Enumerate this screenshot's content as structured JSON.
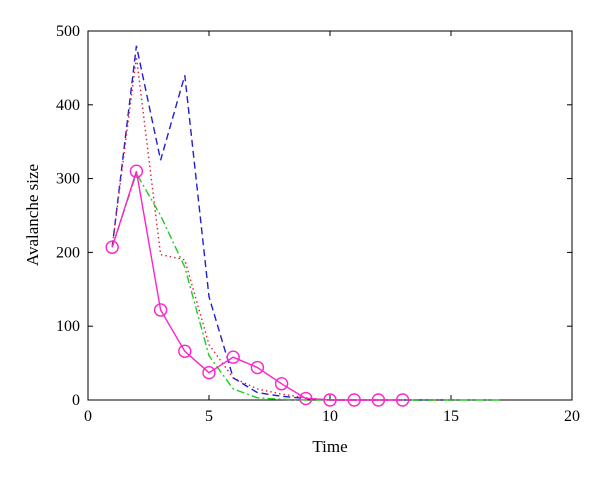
{
  "chart_data": {
    "type": "line",
    "xlabel": "Time",
    "ylabel": "Avalanche size",
    "xlim": [
      0,
      20
    ],
    "ylim": [
      0,
      500
    ],
    "xticks": [
      0,
      5,
      10,
      15,
      20
    ],
    "yticks": [
      0,
      100,
      200,
      300,
      400,
      500
    ],
    "grid": false,
    "legend": "none",
    "series": [
      {
        "color": "#1f1fd6",
        "dash": "dashed",
        "marker": "none",
        "x": [
          1,
          2,
          3,
          4,
          5,
          6,
          7,
          8,
          9,
          10,
          11,
          12,
          13,
          14,
          15
        ],
        "y": [
          207,
          480,
          325,
          440,
          140,
          30,
          10,
          5,
          2,
          0,
          0,
          0,
          0,
          0,
          0
        ]
      },
      {
        "color": "#e0203a",
        "dash": "dotted",
        "marker": "none",
        "x": [
          1,
          2,
          3,
          4,
          5,
          6,
          7,
          8,
          9,
          10,
          11,
          12,
          13,
          14,
          15
        ],
        "y": [
          207,
          465,
          197,
          190,
          75,
          30,
          15,
          8,
          3,
          0,
          0,
          0,
          0,
          0,
          0
        ]
      },
      {
        "color": "#22cc22",
        "dash": "dashdot",
        "marker": "none",
        "x": [
          1,
          2,
          3,
          4,
          5,
          6,
          7,
          8,
          9,
          10,
          11,
          12,
          13,
          14,
          15,
          16,
          17
        ],
        "y": [
          207,
          307,
          250,
          180,
          60,
          15,
          3,
          1,
          0,
          0,
          0,
          0,
          0,
          0,
          0,
          0,
          0
        ]
      },
      {
        "color": "#ff22cc",
        "dash": "solid",
        "marker": "circle",
        "x": [
          1,
          2,
          3,
          4,
          5,
          6,
          7,
          8,
          9,
          10,
          11,
          12,
          13
        ],
        "y": [
          207,
          310,
          122,
          66,
          37,
          58,
          44,
          22,
          2,
          0,
          0,
          0,
          0
        ]
      }
    ]
  }
}
